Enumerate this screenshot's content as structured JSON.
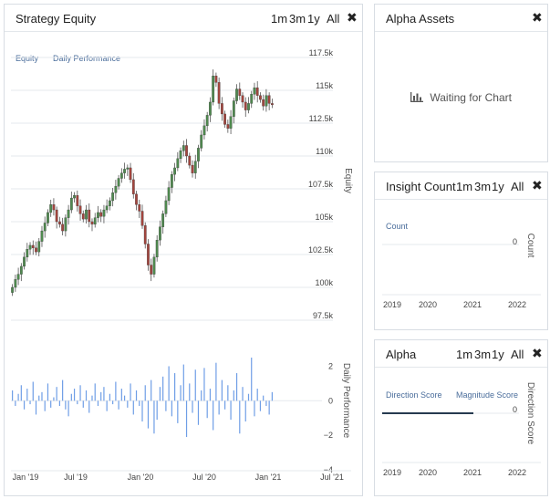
{
  "equity_panel": {
    "title": "Strategy Equity",
    "ranges": [
      "1m",
      "3m",
      "1y",
      "All"
    ],
    "close_icon": "close-icon",
    "legend": [
      "Equity",
      "Daily Performance"
    ],
    "equity_axis_label": "Equity",
    "perf_axis_label": "Daily Performance"
  },
  "alpha_assets_panel": {
    "title": "Alpha Assets",
    "close_icon": "close-icon",
    "status_icon": "bar-chart-icon",
    "status": "Waiting for Chart"
  },
  "insight_panel": {
    "title": "Insight Count",
    "ranges": [
      "1m",
      "3m",
      "1y",
      "All"
    ],
    "close_icon": "close-icon",
    "legend": [
      "Count"
    ],
    "axis_label": "Count",
    "y_tick": "0",
    "x_ticks": [
      "2019",
      "2020",
      "2021",
      "2022"
    ]
  },
  "alpha_panel": {
    "title": "Alpha",
    "ranges": [
      "1m",
      "3m",
      "1y",
      "All"
    ],
    "close_icon": "close-icon",
    "legend": [
      "Direction Score",
      "Magnitude Score"
    ],
    "axis_label": "Direction Score",
    "y_tick": "0",
    "x_ticks": [
      "2019",
      "2020",
      "2021",
      "2022"
    ]
  },
  "colors": {
    "candle_up": "#4f8a4f",
    "candle_down": "#a3453e",
    "perf_bar": "#6f9ee6",
    "legend_text": "#4a6d9b",
    "grid": "#e6e9ed",
    "alpha_line": "#263a4f"
  },
  "chart_data": [
    {
      "type": "candlestick",
      "name": "equity",
      "y_ticks": [
        "117.5k",
        "115k",
        "112.5k",
        "110k",
        "107.5k",
        "105k",
        "102.5k",
        "100k",
        "97.5k"
      ],
      "y_tick_values": [
        117500,
        115000,
        112500,
        110000,
        107500,
        105000,
        102500,
        100000,
        97500
      ],
      "ylim": [
        97500,
        117500
      ],
      "x_ticks": [
        "Jan '19",
        "Jul '19",
        "Jan '20",
        "Jul '20",
        "Jan '21",
        "Jul '21"
      ],
      "x_range": [
        "2019-01",
        "2021-07"
      ],
      "close": [
        100000,
        100600,
        101000,
        101600,
        102300,
        102900,
        103200,
        103000,
        102700,
        103500,
        104300,
        104900,
        105700,
        106300,
        105900,
        105000,
        104800,
        104300,
        105300,
        105900,
        106800,
        107000,
        106200,
        105600,
        105200,
        105900,
        105000,
        104800,
        105300,
        105700,
        105400,
        105900,
        106200,
        106600,
        107200,
        107700,
        108300,
        108700,
        109000,
        109100,
        108200,
        107100,
        106300,
        105800,
        104700,
        103300,
        101700,
        101000,
        102300,
        103600,
        104600,
        105600,
        106600,
        107600,
        108600,
        109100,
        109800,
        110400,
        110800,
        110000,
        109300,
        108700,
        109600,
        110600,
        111600,
        112300,
        113100,
        114100,
        116100,
        115600,
        114000,
        113200,
        112400,
        112100,
        113000,
        114200,
        115100,
        114600,
        114100,
        113500,
        114000,
        114700,
        115200,
        114600,
        114300,
        113800,
        114600,
        114000,
        113900
      ]
    },
    {
      "type": "bar",
      "name": "daily-performance",
      "y_ticks": [
        "2",
        "0",
        "−2",
        "−4"
      ],
      "ylim": [
        -4,
        2.5
      ],
      "values": [
        0.6,
        -0.3,
        0.4,
        0.9,
        -0.5,
        0.7,
        -0.2,
        1.1,
        -0.8,
        0.3,
        0.5,
        -0.6,
        1.0,
        -0.4,
        0.2,
        0.8,
        -0.3,
        1.2,
        -0.5,
        -0.9,
        0.4,
        0.7,
        -0.2,
        0.9,
        -0.4,
        0.6,
        -0.7,
        0.3,
        1.0,
        -0.3,
        0.5,
        0.8,
        -0.6,
        0.4,
        -0.2,
        1.1,
        -0.5,
        0.7,
        0.3,
        -0.4,
        1.0,
        -0.8,
        0.6,
        -0.3,
        -1.2,
        0.9,
        -1.6,
        1.2,
        -1.9,
        -1.1,
        0.8,
        1.4,
        -0.6,
        2.0,
        -0.9,
        1.6,
        -1.3,
        0.9,
        2.1,
        -2.1,
        1.0,
        -0.7,
        1.8,
        -1.4,
        0.6,
        1.9,
        -1.0,
        0.7,
        -1.7,
        2.2,
        -0.8,
        1.2,
        -0.5,
        0.9,
        -1.1,
        0.6,
        1.6,
        -1.9,
        0.8,
        -1.2,
        0.4,
        2.5,
        -0.9,
        0.7,
        -0.6,
        0.3,
        -0.3,
        -0.8,
        0.5
      ]
    }
  ]
}
